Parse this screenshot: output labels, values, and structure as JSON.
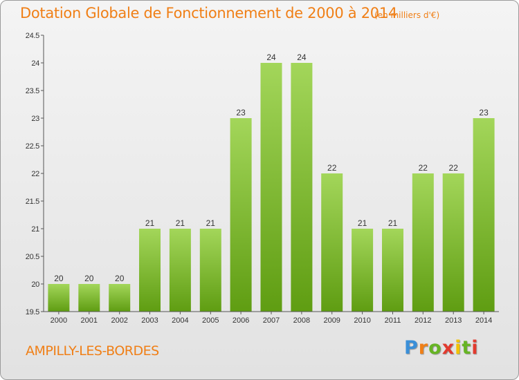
{
  "chart_data": {
    "type": "bar",
    "title": "Dotation Globale de Fonctionnement de 2000 à 2014",
    "subtitle": "(en milliers d'€)",
    "xlabel": "",
    "ylabel": "",
    "categories": [
      "2000",
      "2001",
      "2002",
      "2003",
      "2004",
      "2005",
      "2006",
      "2007",
      "2008",
      "2009",
      "2010",
      "2011",
      "2012",
      "2013",
      "2014"
    ],
    "values": [
      20,
      20,
      20,
      21,
      21,
      21,
      23,
      24,
      24,
      22,
      21,
      21,
      22,
      22,
      23
    ],
    "data_labels": [
      "20",
      "20",
      "20",
      "21",
      "21",
      "21",
      "23",
      "24",
      "24",
      "22",
      "21",
      "21",
      "22",
      "22",
      "23"
    ],
    "ylim": [
      19.5,
      24.5
    ],
    "yticks": [
      19.5,
      20,
      20.5,
      21,
      21.5,
      22,
      22.5,
      23,
      23.5,
      24,
      24.5
    ],
    "ytick_labels": [
      "19.5",
      "20",
      "20.5",
      "21",
      "21.5",
      "22",
      "22.5",
      "23",
      "23.5",
      "24",
      "24.5"
    ],
    "grid": false,
    "bar_color_top": "#a3d65a",
    "bar_color_bottom": "#5f9d12"
  },
  "commune": "AMPILLY-LES-BORDES",
  "logo": {
    "letters": [
      "P",
      "r",
      "o",
      "x",
      "i",
      "t",
      "i"
    ],
    "colors": [
      "#3a8fd8",
      "#f07f16",
      "#66b424",
      "#e23a2e",
      "#f2c200",
      "#66b424",
      "#e23a2e"
    ]
  },
  "colors": {
    "accent": "#f07f16",
    "axis": "#555555"
  }
}
